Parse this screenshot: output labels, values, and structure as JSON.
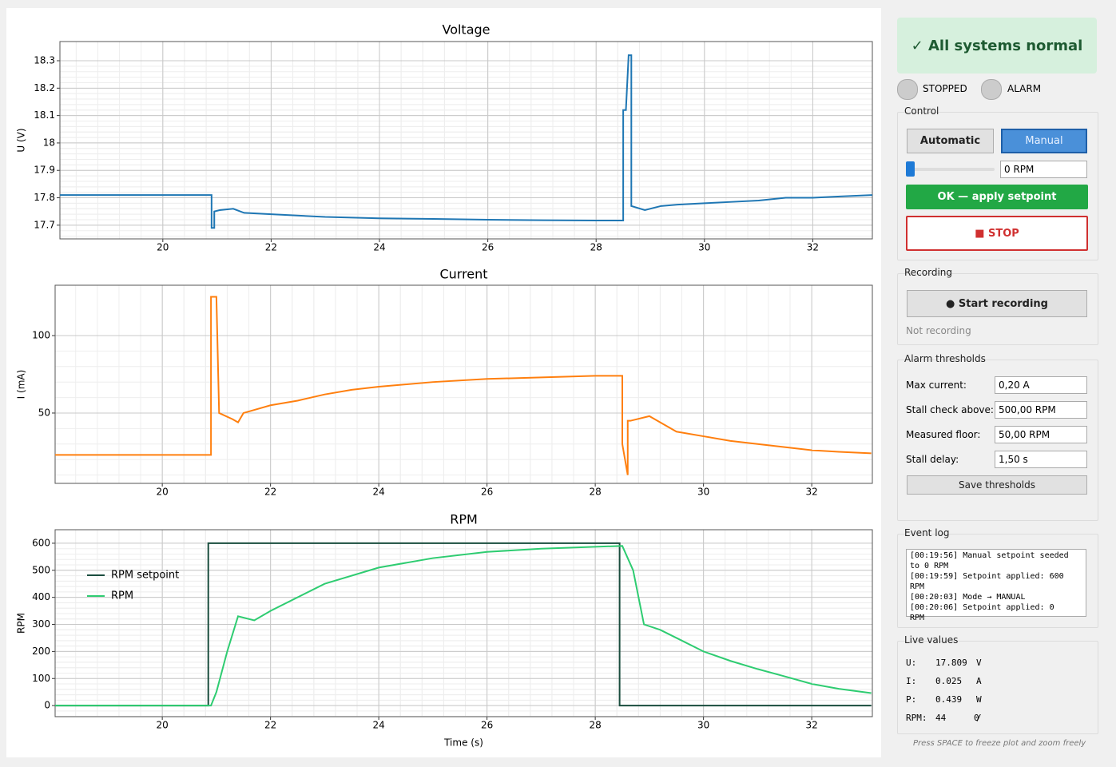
{
  "chart_data": [
    {
      "type": "line",
      "title": "Voltage",
      "ylabel": "U (V)",
      "xlim": [
        18.1,
        33.1
      ],
      "ylim": [
        17.65,
        18.37
      ],
      "xticks": [
        20,
        22,
        24,
        26,
        28,
        30,
        32
      ],
      "yticks": [
        17.7,
        17.8,
        17.9,
        18.0,
        18.1,
        18.2,
        18.3
      ],
      "grid": true,
      "series": [
        {
          "color": "#1f77b4",
          "x": [
            18.1,
            20.9,
            20.9,
            20.95,
            20.95,
            21.05,
            21.3,
            21.5,
            22,
            23,
            24,
            25,
            26,
            27,
            28,
            28.5,
            28.5,
            28.55,
            28.6,
            28.65,
            28.65,
            28.9,
            29.2,
            29.5,
            30,
            30.5,
            31,
            31.5,
            32,
            32.5,
            33.1
          ],
          "values": [
            17.81,
            17.81,
            17.69,
            17.69,
            17.75,
            17.755,
            17.76,
            17.745,
            17.74,
            17.73,
            17.725,
            17.723,
            17.72,
            17.718,
            17.717,
            17.717,
            18.12,
            18.12,
            18.32,
            18.32,
            17.77,
            17.755,
            17.77,
            17.775,
            17.78,
            17.785,
            17.79,
            17.8,
            17.8,
            17.805,
            17.81
          ]
        }
      ]
    },
    {
      "type": "line",
      "title": "Current",
      "ylabel": "I (mA)",
      "xlim": [
        18.02,
        33.12
      ],
      "ylim": [
        4.6,
        132.5
      ],
      "xticks": [
        20,
        22,
        24,
        26,
        28,
        30,
        32
      ],
      "yticks": [
        50,
        100
      ],
      "grid": true,
      "series": [
        {
          "color": "#ff7f0e",
          "x": [
            18.02,
            20.9,
            20.9,
            21.0,
            21.05,
            21.3,
            21.4,
            21.5,
            22,
            22.5,
            23,
            23.5,
            24,
            25,
            26,
            27,
            28,
            28.5,
            28.5,
            28.6,
            28.6,
            28.65,
            29,
            29.3,
            29.5,
            30,
            30.5,
            31,
            31.5,
            32,
            32.5,
            33.1
          ],
          "values": [
            23,
            23,
            125,
            125,
            50,
            46,
            44,
            50,
            55,
            58,
            62,
            65,
            67,
            70,
            72,
            73,
            74,
            74,
            30,
            10,
            45,
            45,
            48,
            42,
            38,
            35,
            32,
            30,
            28,
            26,
            25,
            24
          ]
        }
      ]
    },
    {
      "type": "line",
      "title": "RPM",
      "ylabel": "RPM",
      "xlabel": "Time (s)",
      "xlim": [
        18.02,
        33.12
      ],
      "ylim": [
        -41,
        650
      ],
      "xticks": [
        20,
        22,
        24,
        26,
        28,
        30,
        32
      ],
      "yticks": [
        0,
        100,
        200,
        300,
        400,
        500,
        600
      ],
      "grid": true,
      "legend": "upper-left",
      "series": [
        {
          "name": "RPM setpoint",
          "color": "#1a4d3e",
          "x": [
            18.02,
            20.85,
            20.85,
            28.45,
            28.45,
            33.1
          ],
          "values": [
            0,
            0,
            600,
            600,
            0,
            0
          ]
        },
        {
          "name": "RPM",
          "color": "#2ecc71",
          "x": [
            18.02,
            20.9,
            21,
            21.2,
            21.4,
            21.7,
            22,
            23,
            24,
            25,
            26,
            27,
            28,
            28.5,
            28.7,
            28.9,
            29.2,
            29.5,
            30,
            30.5,
            31,
            31.5,
            32,
            32.5,
            33.1
          ],
          "values": [
            0,
            0,
            50,
            200,
            330,
            315,
            350,
            450,
            510,
            545,
            568,
            580,
            587,
            590,
            500,
            300,
            280,
            250,
            200,
            165,
            135,
            108,
            80,
            62,
            46
          ]
        }
      ]
    }
  ],
  "panel": {
    "status": "✓ All systems normal",
    "stopped": "STOPPED",
    "alarm": "ALARM",
    "control": "Control",
    "automatic": "Automatic",
    "manual": "Manual",
    "rpm_input": "0 RPM",
    "apply": "OK — apply setpoint",
    "stop": "■ STOP",
    "recording": "Recording",
    "start_recording": "● Start recording",
    "not_recording": "Not recording",
    "thresholds": "Alarm thresholds",
    "fields": [
      {
        "label": "Max current:",
        "value": "0,20 A"
      },
      {
        "label": "Stall check above:",
        "value": "500,00 RPM"
      },
      {
        "label": "Measured floor:",
        "value": "50,00 RPM"
      },
      {
        "label": "Stall delay:",
        "value": "1,50 s"
      }
    ],
    "save": "Save thresholds",
    "event_log": "Event log",
    "log": [
      "[00:19:56] Manual setpoint seeded to 0 RPM",
      "[00:19:59] Setpoint applied: 600 RPM",
      "[00:20:03] Mode → MANUAL",
      "[00:20:06] Setpoint applied: 0 RPM"
    ],
    "live": "Live values",
    "live_rows": [
      [
        "U:",
        "17.809",
        "V"
      ],
      [
        "I:",
        "0.025",
        "A"
      ],
      [
        "P:",
        "0.439",
        "W"
      ],
      [
        "RPM:",
        "44",
        "/",
        "0"
      ]
    ],
    "hint": "Press SPACE to freeze plot and zoom freely"
  }
}
